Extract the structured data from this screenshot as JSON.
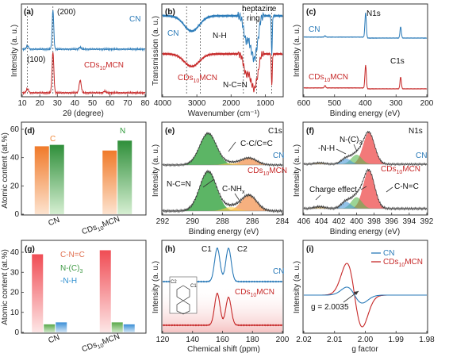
{
  "colors": {
    "cn": "#2a7ab8",
    "cds": "#c62828",
    "orange": "#f08a3c",
    "green": "#3e9e46",
    "pink": "#f06a6a",
    "lgreen": "#72c06e",
    "blue": "#4a9ad8"
  },
  "chart_data": [
    {
      "panel": "(a)",
      "type": "line",
      "xlabel": "2θ (degree)",
      "ylabel": "Intensity (a. u.)",
      "xlim": [
        10,
        80
      ],
      "xticks": [
        "10",
        "20",
        "30",
        "40",
        "50",
        "60",
        "70",
        "80"
      ],
      "annotations": [
        "(200)",
        "(100)"
      ],
      "series": [
        {
          "name": "CN",
          "peaks": [
            {
              "x": 13,
              "h": 0.08
            },
            {
              "x": 27.5,
              "h": 1.0
            },
            {
              "x": 43,
              "h": 0.05
            }
          ]
        },
        {
          "name": "CDs10MCN",
          "peaks": [
            {
              "x": 13,
              "h": 0.1
            },
            {
              "x": 27.5,
              "h": 1.0
            },
            {
              "x": 43,
              "h": 0.3
            },
            {
              "x": 57,
              "h": 0.04
            }
          ]
        }
      ]
    },
    {
      "panel": "(b)",
      "type": "line",
      "xlabel": "Wavenumber (cm⁻¹)",
      "ylabel": "Transmission (a. u.)",
      "xlim": [
        4000,
        500
      ],
      "xticks": [
        "4000",
        "3000",
        "2000",
        "1000"
      ],
      "annotations": [
        "N-H",
        "heptazine ring",
        "N-C=N"
      ],
      "series": [
        {
          "name": "CN"
        },
        {
          "name": "CDs10MCN"
        }
      ]
    },
    {
      "panel": "(c)",
      "type": "line",
      "xlabel": "Binding energy (eV)",
      "ylabel": "Intensity (a. u.)",
      "xlim": [
        600,
        200
      ],
      "xticks": [
        "600",
        "500",
        "400",
        "300",
        "200"
      ],
      "annotations": [
        "N1s",
        "C1s"
      ],
      "series": [
        {
          "name": "CN",
          "peaks": [
            {
              "x": 531,
              "h": 0.05
            },
            {
              "x": 399,
              "h": 1.0
            },
            {
              "x": 285,
              "h": 0.45
            }
          ]
        },
        {
          "name": "CDs10MCN",
          "peaks": [
            {
              "x": 531,
              "h": 0.1
            },
            {
              "x": 399,
              "h": 1.0
            },
            {
              "x": 285,
              "h": 0.5
            }
          ]
        }
      ]
    },
    {
      "panel": "(d)",
      "type": "bar",
      "ylabel": "Atomic content (at.%)",
      "ylim": [
        0,
        60
      ],
      "yticks": [
        "0",
        "20",
        "40",
        "60"
      ],
      "categories": [
        "CN",
        "CDs10MCN"
      ],
      "series": [
        {
          "name": "C",
          "values": [
            48,
            45
          ]
        },
        {
          "name": "N",
          "values": [
            49,
            52
          ]
        }
      ]
    },
    {
      "panel": "(e)",
      "type": "line",
      "xlabel": "Binding energy (eV)",
      "ylabel": "Intensity (a. u.)",
      "xlim": [
        292,
        282
      ],
      "xticks": [
        "292",
        "290",
        "288",
        "286",
        "284"
      ],
      "annotations": [
        "C1s",
        "C-C/C=C",
        "N-C=N",
        "C-NHx"
      ],
      "series": [
        {
          "name": "CN",
          "peaks": [
            {
              "x": 288.2,
              "h": 1.0
            },
            {
              "x": 284.8,
              "h": 0.22
            },
            {
              "x": 286.3,
              "h": 0.06
            }
          ]
        },
        {
          "name": "CDs10MCN",
          "peaks": [
            {
              "x": 288.2,
              "h": 1.0
            },
            {
              "x": 284.8,
              "h": 0.4
            },
            {
              "x": 286.3,
              "h": 0.1
            }
          ]
        }
      ]
    },
    {
      "panel": "(f)",
      "type": "line",
      "xlabel": "Binding energy (eV)",
      "ylabel": "Intensity (a. u.)",
      "xlim": [
        406,
        392
      ],
      "xticks": [
        "406",
        "404",
        "402",
        "400",
        "398",
        "396",
        "394",
        "392"
      ],
      "annotations": [
        "N1s",
        "N-(C)3",
        "-N-H",
        "C-N=C",
        "Charge effect"
      ],
      "series": [
        {
          "name": "CN",
          "peaks": [
            {
              "x": 398.6,
              "h": 1.0
            },
            {
              "x": 400.0,
              "h": 0.3
            },
            {
              "x": 401.2,
              "h": 0.18
            },
            {
              "x": 404.2,
              "h": 0.04
            }
          ]
        },
        {
          "name": "CDs10MCN",
          "peaks": [
            {
              "x": 398.6,
              "h": 1.0
            },
            {
              "x": 400.0,
              "h": 0.3
            },
            {
              "x": 401.2,
              "h": 0.18
            },
            {
              "x": 404.2,
              "h": 0.05
            }
          ]
        }
      ]
    },
    {
      "panel": "(g)",
      "type": "bar",
      "ylabel": "Atomic content (at.%)",
      "ylim": [
        0,
        40
      ],
      "yticks": [
        "0",
        "10",
        "20",
        "30",
        "40"
      ],
      "categories": [
        "CN",
        "CDs10MCN"
      ],
      "series": [
        {
          "name": "C-N=C",
          "values": [
            39,
            41
          ]
        },
        {
          "name": "N-(C)3",
          "values": [
            4,
            5
          ]
        },
        {
          "name": "-N-H",
          "values": [
            5,
            4
          ]
        }
      ]
    },
    {
      "panel": "(h)",
      "type": "line",
      "xlabel": "Chemical shift (ppm)",
      "ylabel": "Intensity (a. u.)",
      "xlim": [
        120,
        200
      ],
      "xticks": [
        "120",
        "140",
        "160",
        "180",
        "200"
      ],
      "annotations": [
        "C1",
        "C2"
      ],
      "series": [
        {
          "name": "CN",
          "peaks": [
            {
              "x": 156.5,
              "h": 1.0
            },
            {
              "x": 164,
              "h": 1.0
            }
          ]
        },
        {
          "name": "CDs10MCN",
          "peaks": [
            {
              "x": 156.5,
              "h": 1.0
            },
            {
              "x": 164,
              "h": 0.88
            }
          ]
        }
      ]
    },
    {
      "panel": "(i)",
      "type": "line",
      "xlabel": "g factor",
      "ylabel": "Intensity (a. u.)",
      "xlim": [
        2.02,
        1.98
      ],
      "xticks": [
        "2.02",
        "2.01",
        "2.00",
        "1.99",
        "1.98"
      ],
      "annotations": [
        "g = 2.0035"
      ],
      "series": [
        {
          "name": "CN",
          "amplitude": 0.25
        },
        {
          "name": "CDs10MCN",
          "amplitude": 1.0
        }
      ]
    }
  ],
  "text": {
    "a": {
      "panel": "(a)",
      "p200": "(200)",
      "p100": "(100)",
      "cn": "CN",
      "cds": "CDs",
      "sub": "10",
      "cds_tail": "MCN",
      "ylabel": "Intensity (a. u.)",
      "xlabel": "2θ (degree)",
      "t": [
        "10",
        "20",
        "30",
        "40",
        "50",
        "60",
        "70",
        "80"
      ]
    },
    "b": {
      "panel": "(b)",
      "nh": "N-H",
      "hep1": "heptazine",
      "hep2": "ring",
      "ncn": "N-C=N",
      "cn": "CN",
      "cds": "CDs",
      "sub": "10",
      "cds_tail": "MCN",
      "ylabel": "Transmission (a. u.)",
      "xlabel": "Wavenumber (cm⁻¹)",
      "t": [
        "4000",
        "3000",
        "2000",
        "1000"
      ]
    },
    "c": {
      "panel": "(c)",
      "n1s": "N1s",
      "c1s": "C1s",
      "cn": "CN",
      "cds": "CDs",
      "sub": "10",
      "cds_tail": "MCN",
      "ylabel": "Intensity (a. u.)",
      "xlabel": "Binding energy (eV)",
      "t": [
        "600",
        "500",
        "400",
        "300",
        "200"
      ]
    },
    "d": {
      "panel": "(d)",
      "c": "C",
      "n": "N",
      "ylabel": "Atomic content (at.%)",
      "cat1": "CN",
      "cat2a": "CDs",
      "sub": "10",
      "cat2b": "MCN",
      "t": [
        "0",
        "20",
        "40",
        "60"
      ]
    },
    "e": {
      "panel": "(e)",
      "c1s": "C1s",
      "cc": "C-C/C=C",
      "ncn": "N-C=N",
      "cnh": "C-NH",
      "x": "x",
      "cn": "CN",
      "cds": "CDs",
      "sub": "10",
      "cds_tail": "MCN",
      "ylabel": "Intensity (a. u.)",
      "xlabel": "Binding energy (eV)",
      "t": [
        "292",
        "290",
        "288",
        "286",
        "284"
      ]
    },
    "f": {
      "panel": "(f)",
      "n1s": "N1s",
      "nc3": "N-(C)",
      "three": "3",
      "nh": "-N-H",
      "cnc": "C-N=C",
      "charge": "Charge effect",
      "cn": "CN",
      "cds": "CDs",
      "sub": "10",
      "cds_tail": "MCN",
      "ylabel": "Intensity (a. u.)",
      "xlabel": "Binding energy (eV)",
      "t": [
        "406",
        "404",
        "402",
        "400",
        "398",
        "396",
        "394",
        "392"
      ]
    },
    "g": {
      "panel": "(g)",
      "l1": "C-N=C",
      "l2": "N-(C)",
      "three": "3",
      "l3": "-N-H",
      "ylabel": "Atomic content (at.%)",
      "cat1": "CN",
      "cat2a": "CDs",
      "sub": "10",
      "cat2b": "MCN",
      "t": [
        "0",
        "10",
        "20",
        "30",
        "40"
      ]
    },
    "h": {
      "panel": "(h)",
      "c1": "C1",
      "c2": "C2",
      "cn": "CN",
      "cds": "CDs",
      "sub": "10",
      "cds_tail": "MCN",
      "ylabel": "Intensity (a. u.)",
      "xlabel": "Chemical shift (ppm)",
      "t": [
        "120",
        "140",
        "160",
        "180",
        "200"
      ],
      "sc1": "C1",
      "sc2": "C2"
    },
    "i": {
      "panel": "(i)",
      "g": "g = 2.0035",
      "cn": "CN",
      "cds": "CDs",
      "sub": "10",
      "cds_tail": "MCN",
      "ylabel": "Intensity (a. u.)",
      "xlabel": "g factor",
      "t": [
        "2.02",
        "2.01",
        "2.00",
        "1.99",
        "1.98"
      ]
    }
  }
}
